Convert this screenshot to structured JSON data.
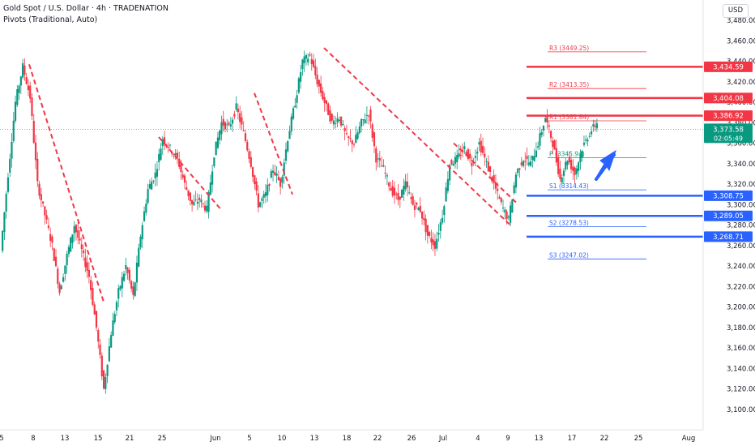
{
  "header": {
    "symbol_title": "Gold Spot / U.S. Dollar · 4h · TRADENATION",
    "indicator": "Pivots (Traditional, Auto)",
    "currency_button": "USD"
  },
  "colors": {
    "up": "#089981",
    "down": "#f23645",
    "resistance": "#f23645",
    "support": "#2962ff",
    "trend": "#f23645",
    "arrow": "#2962ff",
    "price_tag": "#089981",
    "axis_text": "#131722",
    "grid": "#f0f3fa"
  },
  "chart_data": {
    "type": "line",
    "series": [
      {
        "values": [
          3255,
          3330,
          3400,
          3435,
          3405,
          3320,
          3290,
          3260,
          3215,
          3250,
          3280,
          3255,
          3230,
          3180,
          3120,
          3175,
          3215,
          3240,
          3210,
          3270,
          3315,
          3330,
          3365,
          3355,
          3345,
          3320,
          3300,
          3305,
          3295,
          3350,
          3380,
          3375,
          3395,
          3370,
          3340,
          3300,
          3310,
          3335,
          3320,
          3365,
          3400,
          3440,
          3445,
          3420,
          3400,
          3380,
          3385,
          3365,
          3360,
          3380,
          3390,
          3345,
          3335,
          3315,
          3305,
          3320,
          3300,
          3295,
          3270,
          3260,
          3290,
          3340,
          3345,
          3355,
          3340,
          3360,
          3340,
          3320,
          3300,
          3285,
          3330,
          3345,
          3340,
          3360,
          3385,
          3360,
          3325,
          3345,
          3330,
          3355,
          3370,
          3380
        ]
      }
    ],
    "x_tick_labels": [
      "5",
      "8",
      "13",
      "15",
      "21",
      "25",
      "Jun",
      "5",
      "10",
      "13",
      "18",
      "22",
      "26",
      "Jul",
      "4",
      "9",
      "13",
      "17",
      "22",
      "25",
      "Aug"
    ],
    "y_tick_labels": [
      "3,480.00",
      "3,460.00",
      "3,440.00",
      "3,420.00",
      "3,400.00",
      "3,380.00",
      "3,360.00",
      "3,340.00",
      "3,320.00",
      "3,300.00",
      "3,280.00",
      "3,260.00",
      "3,240.00",
      "3,220.00",
      "3,200.00",
      "3,180.00",
      "3,160.00",
      "3,140.00",
      "3,120.00",
      "3,100.00"
    ],
    "ylim": [
      3090,
      3490
    ],
    "pivots": [
      {
        "label": "R3 (3449.25)",
        "value": 3449.25,
        "kind": "r"
      },
      {
        "label": "R2 (3413.35)",
        "value": 3413.35,
        "kind": "r"
      },
      {
        "label": "R1 (3381.84)",
        "value": 3381.84,
        "kind": "r"
      },
      {
        "label": "P (3345.94)",
        "value": 3345.94,
        "kind": "p"
      },
      {
        "label": "S1 (3314.43)",
        "value": 3314.43,
        "kind": "s"
      },
      {
        "label": "S2 (3278.53)",
        "value": 3278.53,
        "kind": "s"
      },
      {
        "label": "S3 (3247.02)",
        "value": 3247.02,
        "kind": "s"
      }
    ],
    "levels": [
      {
        "value": 3434.59,
        "label": "3,434.59",
        "kind": "resistance"
      },
      {
        "value": 3404.08,
        "label": "3,404.08",
        "kind": "resistance"
      },
      {
        "value": 3386.92,
        "label": "3,386.92",
        "kind": "resistance"
      },
      {
        "value": 3308.75,
        "label": "3,308.75",
        "kind": "support"
      },
      {
        "value": 3289.05,
        "label": "3,289.05",
        "kind": "support"
      },
      {
        "value": 3268.71,
        "label": "3,268.71",
        "kind": "support"
      }
    ],
    "current_price": {
      "value": 3373.58,
      "label": "3,373.58",
      "countdown": "02:05:49"
    },
    "grid": false,
    "legend": "top-left"
  }
}
